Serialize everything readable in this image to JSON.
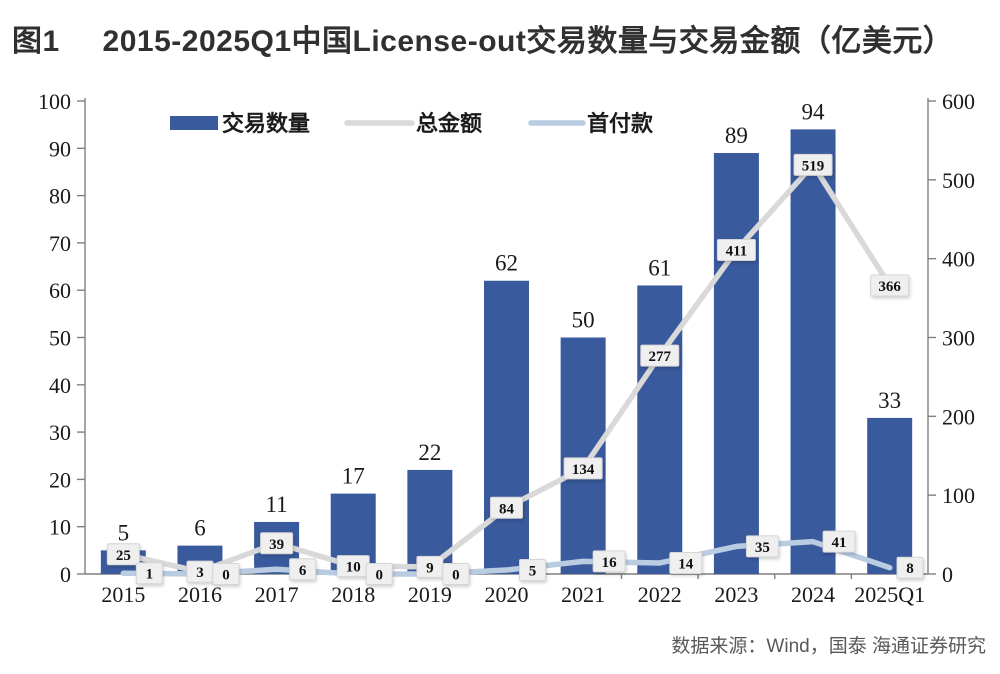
{
  "figure": {
    "tag": "图1",
    "title": "2015-2025Q1中国License-out交易数量与交易金额（亿美元）"
  },
  "source": "数据来源：Wind，国泰 海通证券研究",
  "colors": {
    "bar": "#3A5A9E",
    "total_line": "#D9D9D9",
    "down_line": "#B9CCE1",
    "label_box_bg": "#EFEFEF",
    "label_box_border": "#D6D6D6",
    "axis": "#7F7F7F",
    "text": "#1A1A1A",
    "source_text": "#595959",
    "title_text": "#303030"
  },
  "chart_data": {
    "type": "bar+line",
    "title": "2015-2025Q1中国License-out交易数量与交易金额（亿美元）",
    "categories": [
      "2015",
      "2016",
      "2017",
      "2018",
      "2019",
      "2020",
      "2021",
      "2022",
      "2023",
      "2024",
      "2025Q1"
    ],
    "series": [
      {
        "name": "交易数量",
        "type": "bar",
        "axis": "left",
        "values": [
          5,
          6,
          11,
          17,
          22,
          62,
          50,
          61,
          89,
          94,
          33
        ]
      },
      {
        "name": "总金额",
        "type": "line",
        "axis": "right",
        "values": [
          25,
          3,
          39,
          10,
          9,
          84,
          134,
          277,
          411,
          519,
          366
        ]
      },
      {
        "name": "首付款",
        "type": "line",
        "axis": "right",
        "values": [
          1,
          0,
          6,
          0,
          0,
          5,
          16,
          14,
          35,
          41,
          8
        ]
      }
    ],
    "left_axis": {
      "min": 0,
      "max": 100,
      "step": 10
    },
    "right_axis": {
      "min": 0,
      "max": 600,
      "step": 100
    },
    "legend_position": "top",
    "grid": false,
    "data_labels": true
  }
}
